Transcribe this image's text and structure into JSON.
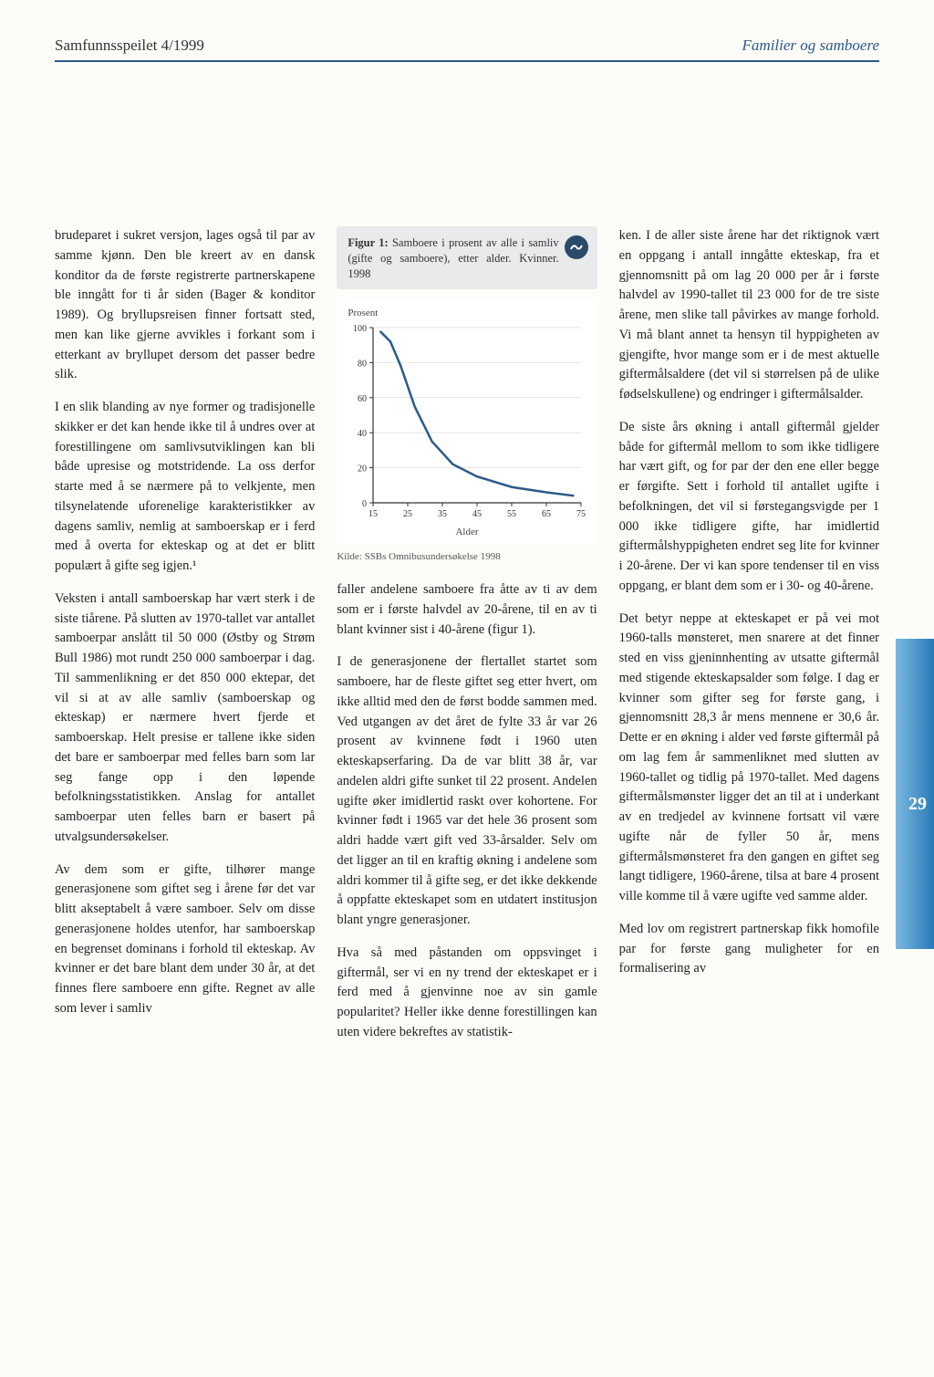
{
  "header": {
    "left": "Samfunnsspeilet 4/1999",
    "right": "Familier og samboere"
  },
  "page_number": "29",
  "col1": {
    "p1": "brudeparet i sukret versjon, lages også til par av samme kjønn. Den ble kreert av en dansk konditor da de første registrerte partnerskapene ble inngått for ti år siden (Bager & konditor 1989). Og bryllupsreisen finner fortsatt sted, men kan like gjerne avvikles i forkant som i etterkant av bryllupet dersom det passer bedre slik.",
    "p2": "I en slik blanding av nye former og tradisjonelle skikker er det kan hende ikke til å undres over at forestillingene om samlivsutviklingen kan bli både upresise og motstridende. La oss derfor starte med å se nærmere på to velkjente, men tilsynelatende uforenelige karakteristikker av dagens samliv, nemlig at samboerskap er i ferd med å overta for ekteskap og at det er blitt populært å gifte seg igjen.¹",
    "p3": "Veksten i antall samboerskap har vært sterk i de siste tiårene. På slutten av 1970-tallet var antallet samboerpar anslått til 50 000 (Østby og Strøm Bull 1986) mot rundt 250 000 samboerpar i dag. Til sammenlikning er det 850 000 ektepar, det vil si at av alle samliv (samboerskap og ekteskap) er nærmere hvert fjerde et samboerskap. Helt presise er tallene ikke siden det bare er samboerpar med felles barn som lar seg fange opp i den løpende befolkningsstatistikken. Anslag for antallet samboerpar uten felles barn er basert på utvalgsundersøkelser.",
    "p4": "Av dem som er gifte, tilhører mange generasjonene som giftet seg i årene før det var blitt akseptabelt å være samboer. Selv om disse generasjonene holdes utenfor, har samboerskap en begrenset dominans i forhold til ekteskap. Av kvinner er det bare blant dem under 30 år, at det finnes flere samboere enn gifte. Regnet av alle som lever i samliv"
  },
  "figure": {
    "label": "Figur 1:",
    "title_rest": " Samboere i prosent av alle i samliv (gifte og samboere), etter alder. Kvinner. 1998",
    "ylabel": "Prosent",
    "xlabel": "Alder",
    "source": "Kilde: SSBs Omnibusundersøkelse 1998",
    "type": "line",
    "xlim": [
      15,
      75
    ],
    "ylim": [
      0,
      100
    ],
    "xticks": [
      15,
      25,
      35,
      45,
      55,
      65,
      75
    ],
    "yticks": [
      0,
      20,
      40,
      60,
      80,
      100
    ],
    "line_color": "#2a5a8a",
    "line_width": 2.5,
    "axis_color": "#333333",
    "grid_color": "#cccccc",
    "background_color": "#ffffff",
    "label_fontsize": 11,
    "tick_fontsize": 10,
    "data": {
      "x": [
        17,
        20,
        23,
        27,
        32,
        38,
        45,
        55,
        65,
        73
      ],
      "y": [
        98,
        92,
        78,
        55,
        35,
        22,
        15,
        9,
        6,
        4
      ]
    }
  },
  "col2": {
    "p1": "faller andelene samboere fra åtte av ti av dem som er i første halvdel av 20-årene, til en av ti blant kvinner sist i 40-årene (figur 1).",
    "p2": "I de generasjonene der flertallet startet som samboere, har de fleste giftet seg etter hvert, om ikke alltid med den de først bodde sammen med. Ved utgangen av det året de fylte 33 år var 26 prosent av kvinnene født i 1960 uten ekteskapserfaring. Da de var blitt 38 år, var andelen aldri gifte sunket til 22 prosent. Andelen ugifte øker imidlertid raskt over kohortene. For kvinner født i 1965 var det hele 36 prosent som aldri hadde vært gift ved 33-årsalder. Selv om det ligger an til en kraftig økning i andelene som aldri kommer til å gifte seg, er det ikke dekkende å oppfatte ekteskapet som en utdatert institusjon blant yngre generasjoner.",
    "p3": "Hva så med påstanden om oppsvinget i giftermål, ser vi en ny trend der ekteskapet er i ferd med å gjenvinne noe av sin gamle popularitet? Heller ikke denne forestillingen kan uten videre bekreftes av statistik-"
  },
  "col3": {
    "p1": "ken. I de aller siste årene har det riktignok vært en oppgang i antall inngåtte ekteskap, fra et gjennomsnitt på om lag 20 000 per år i første halvdel av 1990-tallet til 23 000 for de tre siste årene, men slike tall påvirkes av mange forhold. Vi må blant annet ta hensyn til hyppigheten av gjengifte, hvor mange som er i de mest aktuelle giftermålsaldere (det vil si størrelsen på de ulike fødselskullene) og endringer i giftermålsalder.",
    "p2": "De siste års økning i antall giftermål gjelder både for giftermål mellom to som ikke tidligere har vært gift, og for par der den ene eller begge er førgifte. Sett i forhold til antallet ugifte i befolkningen, det vil si førstegangsvigde per 1 000 ikke tidligere gifte, har imidlertid giftermålshyppigheten endret seg lite for kvinner i 20-årene. Der vi kan spore tendenser til en viss oppgang, er blant dem som er i 30- og 40-årene.",
    "p3": "Det betyr neppe at ekteskapet er på vei mot 1960-talls mønsteret, men snarere at det finner sted en viss gjeninnhenting av utsatte giftermål med stigende ekteskapsalder som følge. I dag er kvinner som gifter seg for første gang, i gjennomsnitt 28,3 år mens mennene er 30,6 år. Dette er en økning i alder ved første giftermål på om lag fem år sammenliknet med slutten av 1960-tallet og tidlig på 1970-tallet. Med dagens giftermålsmønster ligger det an til at i underkant av en tredjedel av kvinnene fortsatt vil være ugifte når de fyller 50 år, mens giftermålsmønsteret fra den gangen en giftet seg langt tidligere, 1960-årene, tilsa at bare 4 prosent ville komme til å være ugifte ved samme alder.",
    "p4": "Med lov om registrert partnerskap fikk homofile par for første gang muligheter for en formalisering av"
  }
}
